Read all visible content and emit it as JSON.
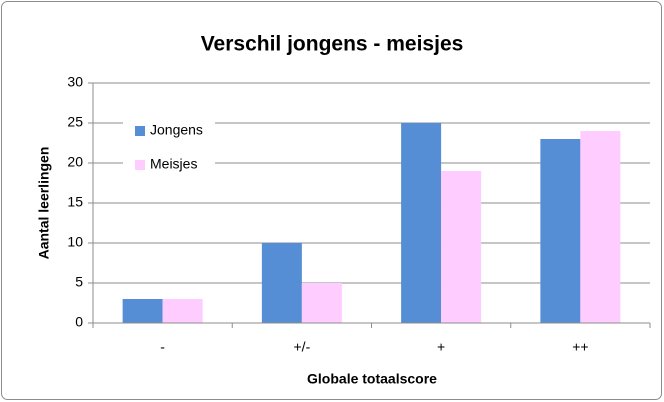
{
  "chart_data": {
    "type": "bar",
    "title": "Verschil jongens - meisjes",
    "x_label": "Globale totaalscore",
    "y_label": "Aantal leerlingen",
    "categories": [
      "-",
      "+/-",
      "+",
      "++"
    ],
    "series": [
      {
        "name": "Jongens",
        "color": "#558ed5",
        "values": [
          3,
          10,
          25,
          23
        ]
      },
      {
        "name": "Meisjes",
        "color": "#ffccff",
        "values": [
          3,
          5,
          19,
          24
        ]
      }
    ],
    "ylim": [
      0,
      30
    ],
    "yticks": [
      0,
      5,
      10,
      15,
      20,
      25,
      30
    ],
    "grid": true,
    "legend": "upper left"
  }
}
